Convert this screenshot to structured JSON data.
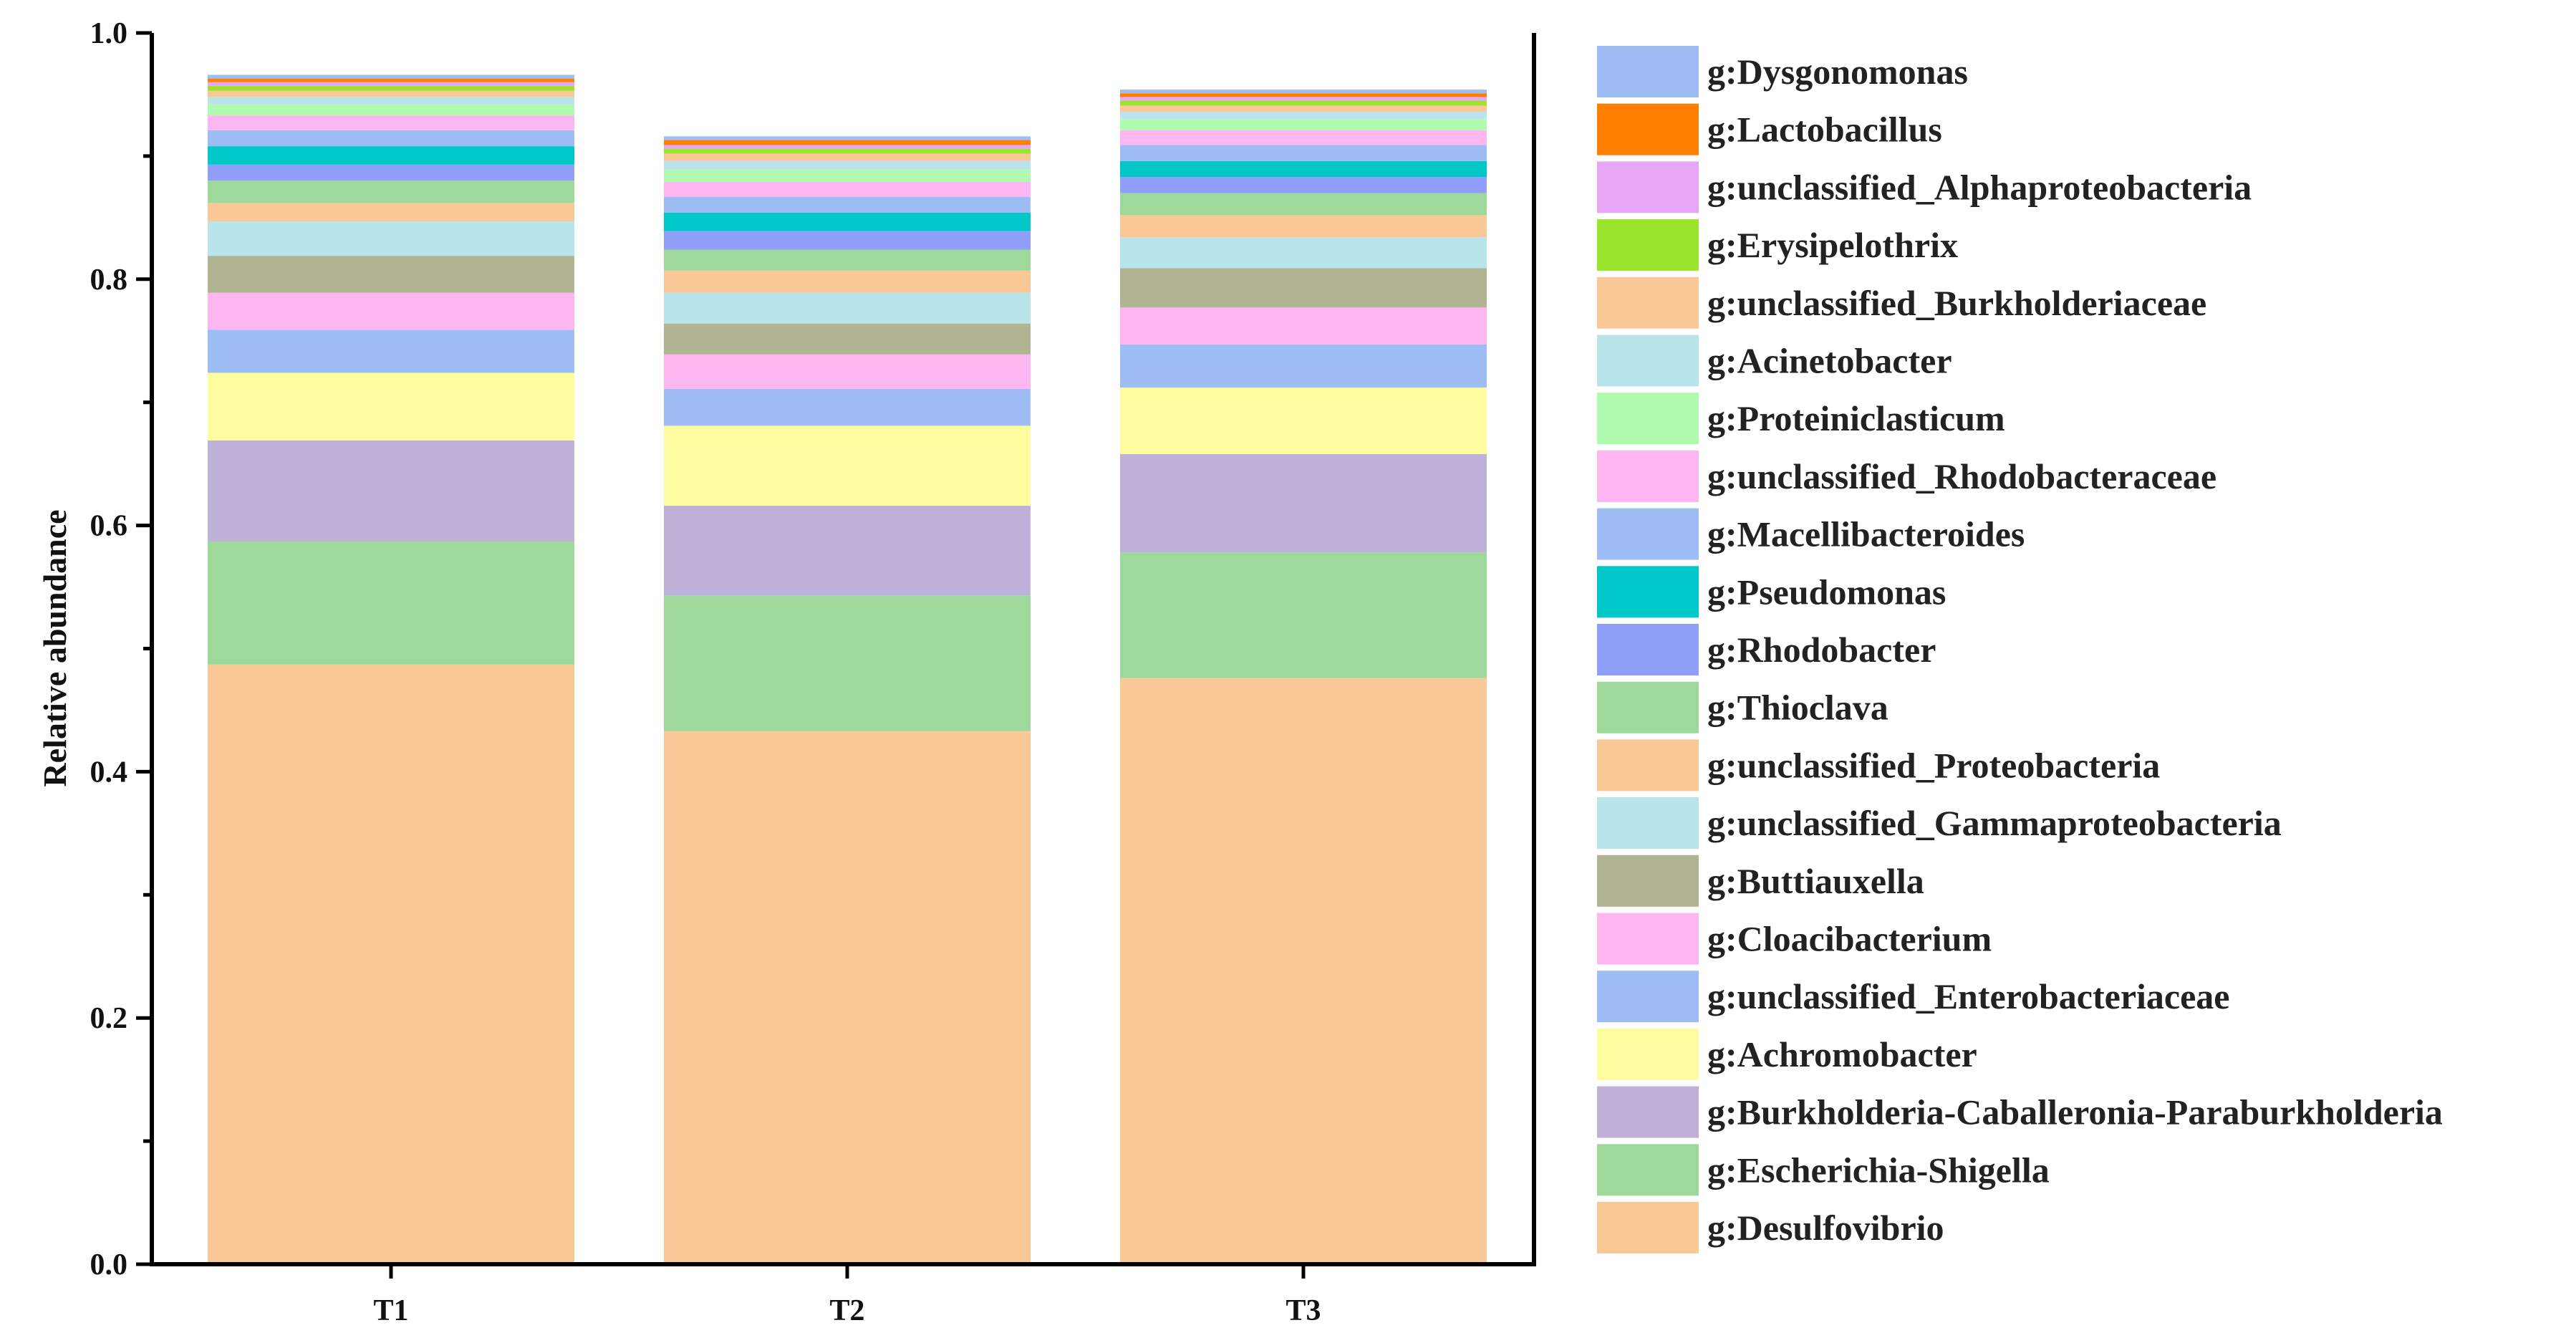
{
  "chart_data": {
    "type": "bar",
    "stacked": true,
    "title": "",
    "xlabel": "",
    "ylabel": "Relative abundance",
    "ylim": [
      0,
      1.0
    ],
    "yticks": [
      "0.0",
      "0.2",
      "0.4",
      "0.6",
      "0.8",
      "1.0"
    ],
    "categories": [
      "T1",
      "T2",
      "T3"
    ],
    "legend_position": "right",
    "series": [
      {
        "name": "g:Desulfovibrio",
        "color": "#F9C896",
        "values": [
          0.487,
          0.433,
          0.476
        ]
      },
      {
        "name": "g:Escherichia-Shigella",
        "color": "#9ED89B",
        "values": [
          0.1,
          0.11,
          0.102
        ]
      },
      {
        "name": "g:Burkholderia-Caballeronia-Paraburkholderia",
        "color": "#C0B1D8",
        "values": [
          0.082,
          0.073,
          0.08
        ]
      },
      {
        "name": "g:Achromobacter",
        "color": "#FDFDA0",
        "values": [
          0.055,
          0.065,
          0.054
        ]
      },
      {
        "name": "g:unclassified_Enterobacteriaceae",
        "color": "#9EBDF4",
        "values": [
          0.035,
          0.03,
          0.035
        ]
      },
      {
        "name": "g:Cloacibacterium",
        "color": "#FDB6F0",
        "values": [
          0.03,
          0.028,
          0.03
        ]
      },
      {
        "name": "g:Buttiauxella",
        "color": "#B0B493",
        "values": [
          0.03,
          0.025,
          0.032
        ]
      },
      {
        "name": "g:unclassified_Gammaproteobacteria",
        "color": "#B8E4EA",
        "values": [
          0.028,
          0.025,
          0.025
        ]
      },
      {
        "name": "g:unclassified_Proteobacteria",
        "color": "#F9C896",
        "values": [
          0.015,
          0.018,
          0.018
        ]
      },
      {
        "name": "g:Thioclava",
        "color": "#9ED89B",
        "values": [
          0.018,
          0.017,
          0.018
        ]
      },
      {
        "name": "g:Rhodobacter",
        "color": "#8F9FFA",
        "values": [
          0.013,
          0.015,
          0.013
        ]
      },
      {
        "name": "g:Pseudomonas",
        "color": "#00C8C8",
        "values": [
          0.015,
          0.015,
          0.013
        ]
      },
      {
        "name": "g:Macellibacteroides",
        "color": "#9EBDF4",
        "values": [
          0.013,
          0.013,
          0.013
        ]
      },
      {
        "name": "g:unclassified_Rhodobacteraceae",
        "color": "#FDB6F0",
        "values": [
          0.012,
          0.012,
          0.012
        ]
      },
      {
        "name": "g:Proteiniclasticum",
        "color": "#B1FBB1",
        "values": [
          0.009,
          0.01,
          0.009
        ]
      },
      {
        "name": "g:Acinetobacter",
        "color": "#B8E4EA",
        "values": [
          0.006,
          0.007,
          0.006
        ]
      },
      {
        "name": "g:unclassified_Burkholderiaceae",
        "color": "#F9C896",
        "values": [
          0.005,
          0.006,
          0.005
        ]
      },
      {
        "name": "g:Erysipelothrix",
        "color": "#9BE52F",
        "values": [
          0.004,
          0.004,
          0.004
        ]
      },
      {
        "name": "g:unclassified_Alphaproteobacteria",
        "color": "#E8A6F8",
        "values": [
          0.003,
          0.003,
          0.003
        ]
      },
      {
        "name": "g:Lactobacillus",
        "color": "#FF8000",
        "values": [
          0.003,
          0.004,
          0.003
        ]
      },
      {
        "name": "g:Dysgonomonas",
        "color": "#9EBDF4",
        "values": [
          0.003,
          0.003,
          0.003
        ]
      }
    ]
  }
}
